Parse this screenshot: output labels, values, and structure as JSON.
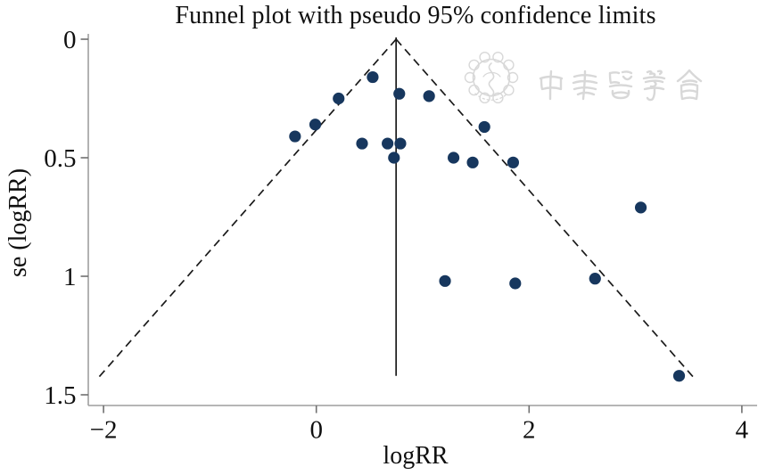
{
  "chart_data": {
    "type": "scatter",
    "title": "Funnel plot with pseudo 95% confidence limits",
    "xlabel": "logRR",
    "ylabel": "se (logRR)",
    "x_ticks": {
      "values": [
        -2,
        0,
        2,
        4
      ],
      "labels": [
        "−2",
        "0",
        "2",
        "4"
      ]
    },
    "y_ticks": {
      "values": [
        0,
        0.5,
        1,
        1.5
      ],
      "labels": [
        "0",
        "0.5",
        "1",
        "1.5"
      ]
    },
    "xlim": [
      -2.14,
      4.15
    ],
    "ylim": [
      0,
      1.545
    ],
    "y_axis_reversed": true,
    "grid": false,
    "legend": "none",
    "center_line": {
      "x": 0.75,
      "style": "solid"
    },
    "funnel_limits": {
      "type": "pseudo 95% CI",
      "multiplier": 1.96,
      "center_x": 0.75,
      "max_se": 1.425,
      "style": "dashed"
    },
    "points": [
      {
        "logRR": 0.53,
        "se": 0.16
      },
      {
        "logRR": 0.78,
        "se": 0.23
      },
      {
        "logRR": 1.06,
        "se": 0.24
      },
      {
        "logRR": 0.21,
        "se": 0.25
      },
      {
        "logRR": -0.01,
        "se": 0.36
      },
      {
        "logRR": 1.58,
        "se": 0.37
      },
      {
        "logRR": -0.2,
        "se": 0.41
      },
      {
        "logRR": 0.43,
        "se": 0.44
      },
      {
        "logRR": 0.67,
        "se": 0.44
      },
      {
        "logRR": 0.79,
        "se": 0.44
      },
      {
        "logRR": 0.73,
        "se": 0.5
      },
      {
        "logRR": 1.29,
        "se": 0.5
      },
      {
        "logRR": 1.47,
        "se": 0.52
      },
      {
        "logRR": 1.85,
        "se": 0.52
      },
      {
        "logRR": 3.05,
        "se": 0.71
      },
      {
        "logRR": 1.21,
        "se": 1.02
      },
      {
        "logRR": 1.87,
        "se": 1.03
      },
      {
        "logRR": 2.62,
        "se": 1.01
      },
      {
        "logRR": 3.41,
        "se": 1.42
      }
    ],
    "colors": {
      "point": "#17375e",
      "funnel_line": "#1a1a1a",
      "axis_line": "#9e9e9e",
      "tick_mark": "#707070",
      "watermark": "#d8d8d8"
    },
    "watermark_text": "中華醫學會"
  }
}
